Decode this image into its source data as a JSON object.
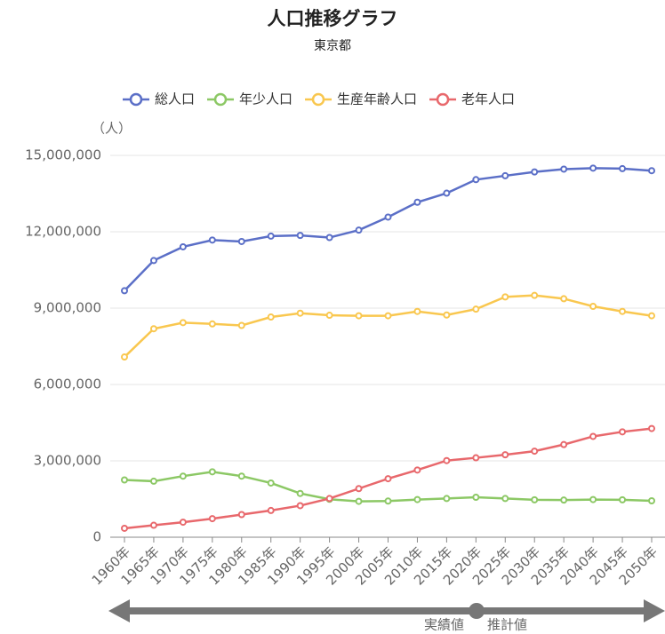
{
  "chart_data": {
    "type": "line",
    "title": "人口推移グラフ",
    "subtitle": "東京都",
    "y_label": "（人）",
    "categories": [
      "1960年",
      "1965年",
      "1970年",
      "1975年",
      "1980年",
      "1985年",
      "1990年",
      "1995年",
      "2000年",
      "2005年",
      "2010年",
      "2015年",
      "2020年",
      "2025年",
      "2030年",
      "2035年",
      "2040年",
      "2045年",
      "2050年"
    ],
    "series": [
      {
        "name": "総人口",
        "color": "#5b6fc7",
        "values": [
          9683802,
          10869244,
          11408071,
          11673554,
          11618281,
          11829363,
          11855563,
          11773605,
          12064101,
          12576601,
          13159388,
          13515271,
          14047594,
          14200000,
          14350000,
          14460000,
          14500000,
          14480000,
          14400000
        ]
      },
      {
        "name": "年少人口",
        "color": "#8cc865",
        "values": [
          2250000,
          2200000,
          2400000,
          2570000,
          2400000,
          2130000,
          1720000,
          1490000,
          1410000,
          1420000,
          1480000,
          1520000,
          1570000,
          1520000,
          1470000,
          1460000,
          1480000,
          1470000,
          1430000
        ]
      },
      {
        "name": "生産年齢人口",
        "color": "#f9c74f",
        "values": [
          7080000,
          8190000,
          8430000,
          8380000,
          8320000,
          8650000,
          8800000,
          8720000,
          8700000,
          8700000,
          8870000,
          8730000,
          8960000,
          9440000,
          9500000,
          9370000,
          9070000,
          8870000,
          8700000
        ]
      },
      {
        "name": "老年人口",
        "color": "#e8686c",
        "values": [
          350000,
          470000,
          590000,
          730000,
          890000,
          1050000,
          1240000,
          1520000,
          1910000,
          2300000,
          2640000,
          3010000,
          3120000,
          3240000,
          3380000,
          3640000,
          3960000,
          4140000,
          4270000
        ]
      }
    ],
    "ylim": [
      0,
      15000000
    ],
    "yticks": [
      0,
      {
        "value": 3000000,
        "label": "3,000,000"
      },
      {
        "value": 6000000,
        "label": "6,000,000"
      },
      {
        "value": 9000000,
        "label": "9,000,000"
      },
      {
        "value": 12000000,
        "label": "12,000,000"
      },
      {
        "value": 15000000,
        "label": "15,000,000"
      }
    ],
    "grid": true,
    "legend": "top",
    "timeline": {
      "actual": "実績値",
      "projected": "推計値"
    }
  }
}
